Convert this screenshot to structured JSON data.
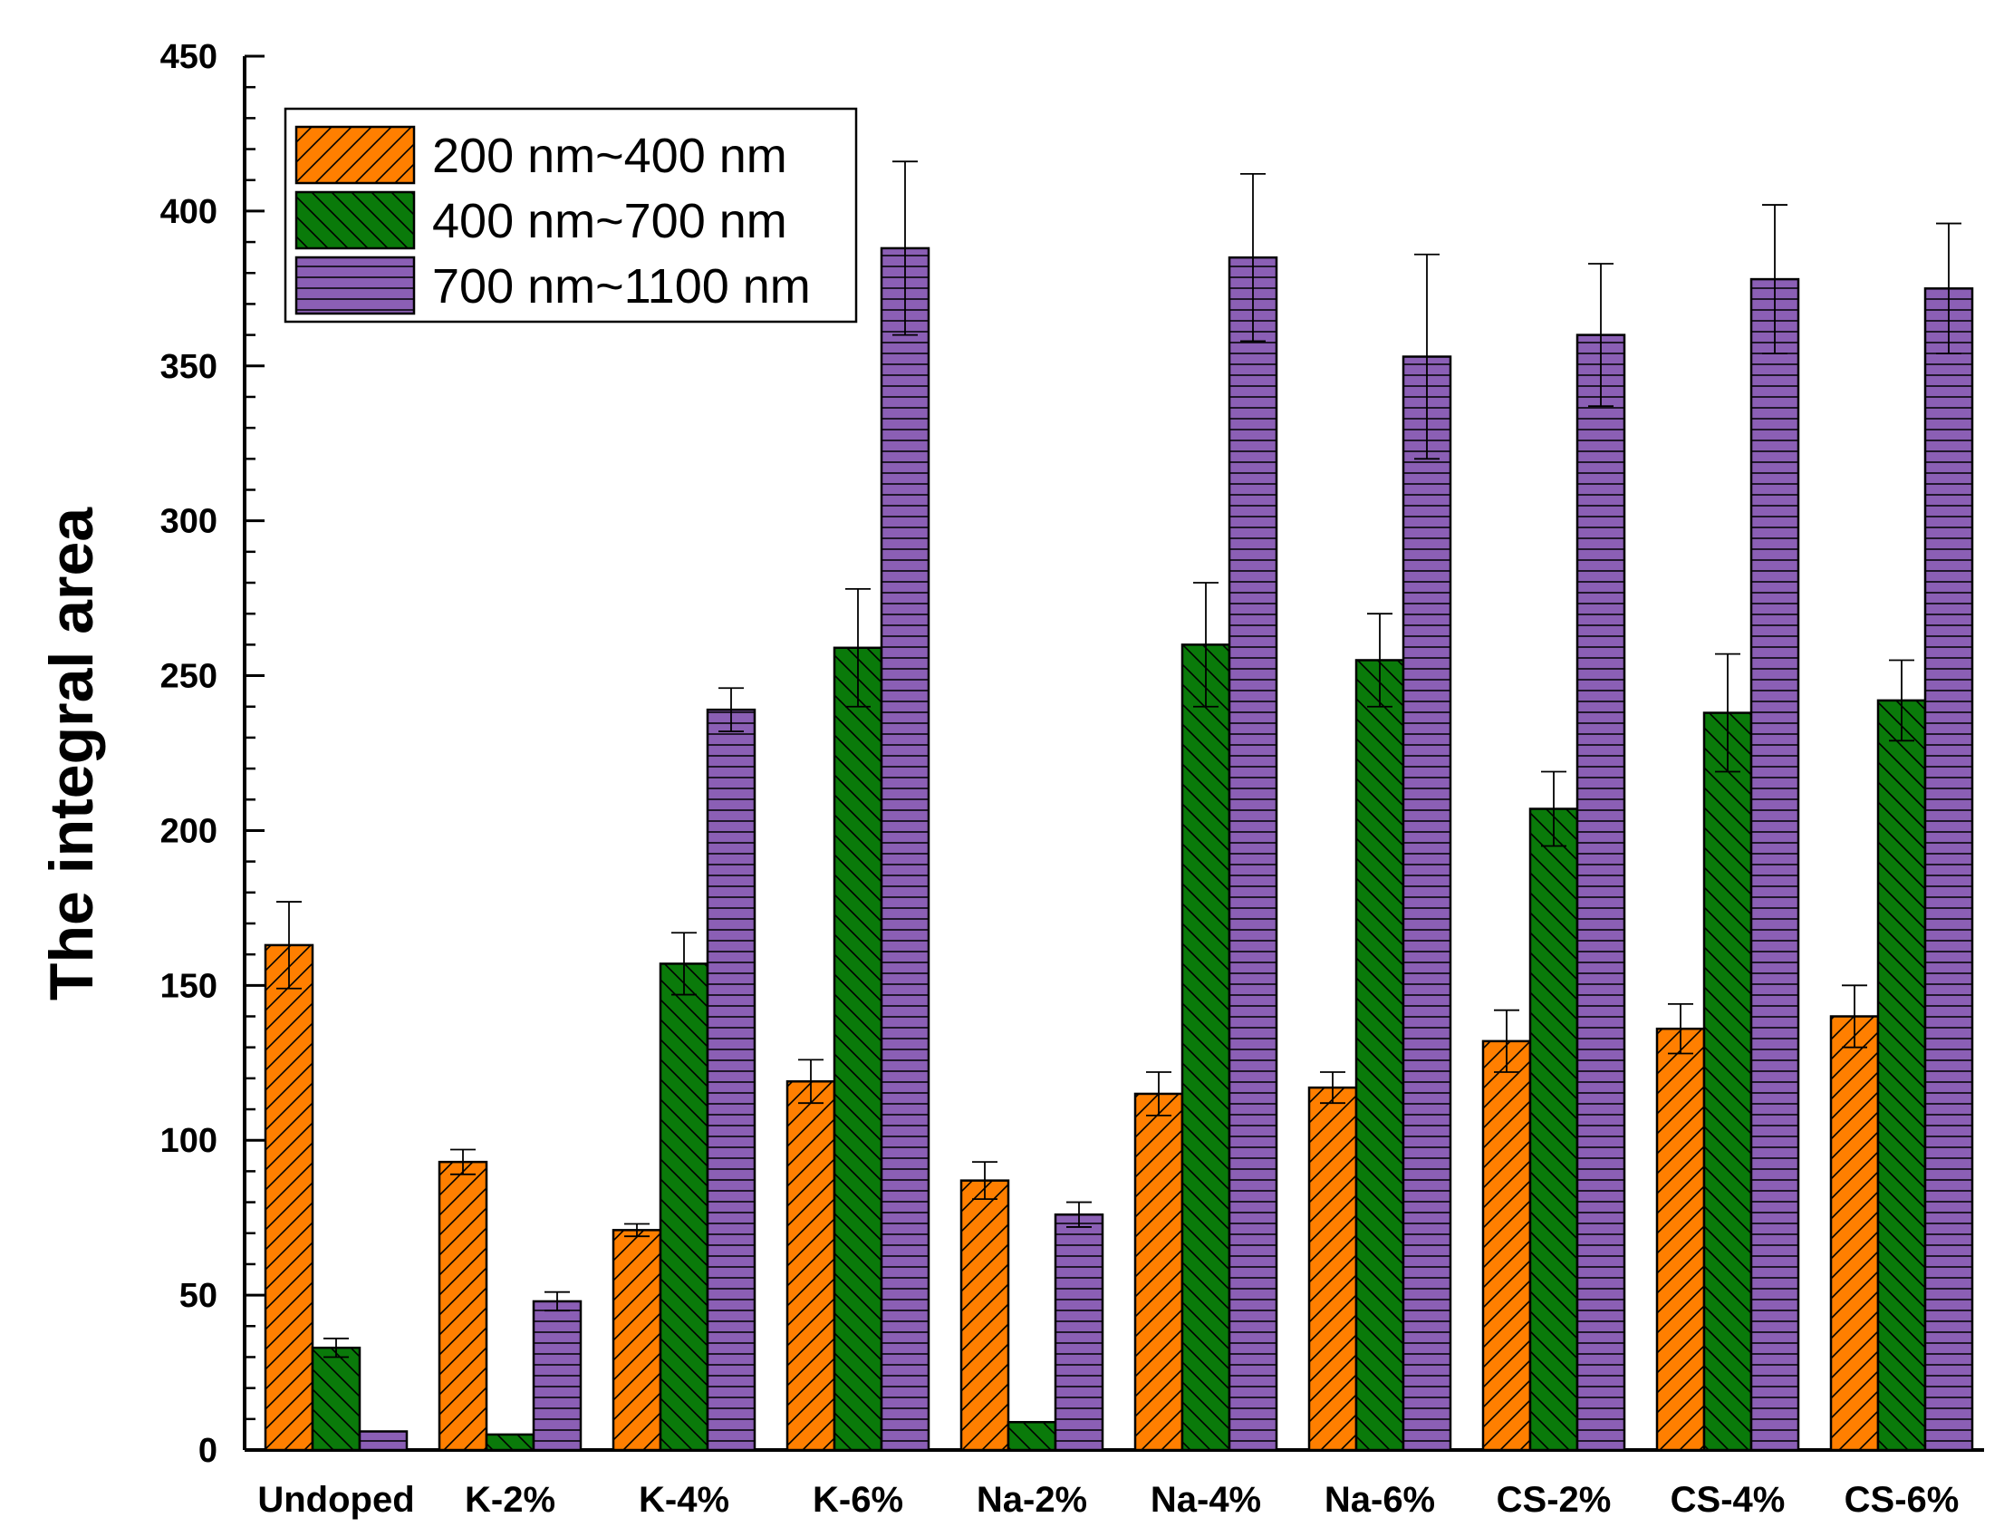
{
  "chart_data": {
    "type": "bar",
    "title": "",
    "xlabel": "",
    "ylabel": "The integral area",
    "ylim": [
      0,
      450
    ],
    "yticks": [
      0,
      50,
      100,
      150,
      200,
      250,
      300,
      350,
      400,
      450
    ],
    "legend_position": "top-left",
    "categories": [
      "Undoped",
      "K-2%",
      "K-4%",
      "K-6%",
      "Na-2%",
      "Na-4%",
      "Na-6%",
      "CS-2%",
      "CS-4%",
      "CS-6%"
    ],
    "series": [
      {
        "name": "200 nm~400 nm",
        "color": "#ff7f00",
        "pattern": "diagonal-up",
        "values": [
          163,
          93,
          71,
          119,
          87,
          115,
          117,
          132,
          136,
          140
        ],
        "errors": [
          14,
          4,
          2,
          7,
          6,
          7,
          5,
          10,
          8,
          10
        ]
      },
      {
        "name": "400 nm~700 nm",
        "color": "#0a7a0a",
        "pattern": "diagonal-down",
        "values": [
          33,
          5,
          157,
          259,
          9,
          260,
          255,
          207,
          238,
          242
        ],
        "errors": [
          3,
          0,
          10,
          19,
          0,
          20,
          15,
          12,
          19,
          13
        ]
      },
      {
        "name": "700 nm~1100 nm",
        "color": "#8b5fb5",
        "pattern": "horizontal",
        "values": [
          6,
          48,
          239,
          388,
          76,
          385,
          353,
          360,
          378,
          375
        ],
        "errors": [
          0,
          3,
          7,
          28,
          4,
          27,
          33,
          23,
          24,
          21
        ]
      }
    ]
  }
}
